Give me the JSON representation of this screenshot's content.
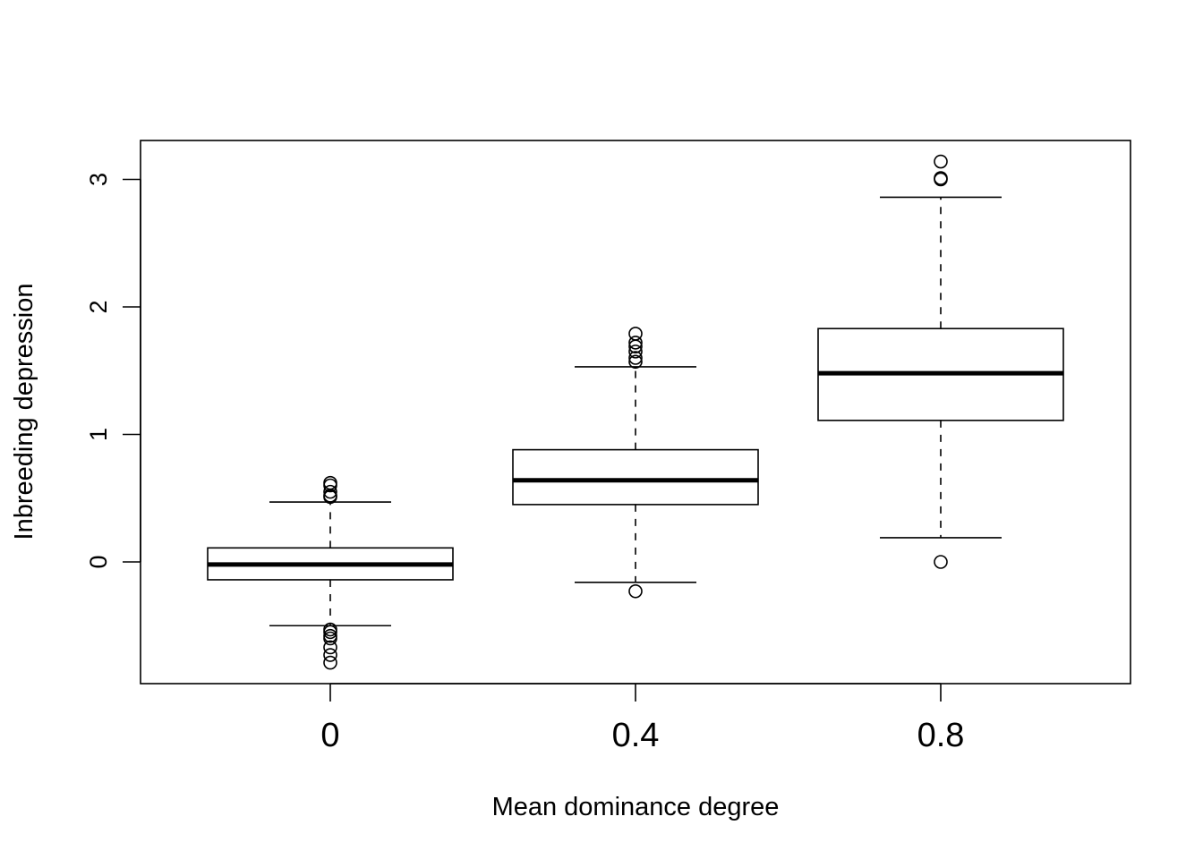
{
  "chart_data": {
    "type": "boxplot",
    "title": "",
    "xlabel": "Mean dominance degree",
    "ylabel": "Inbreeding depression",
    "categories": [
      "0",
      "0.4",
      "0.8"
    ],
    "ylim": [
      -0.95,
      3.3
    ],
    "yticks": [
      0,
      1,
      2,
      3
    ],
    "boxes": [
      {
        "category": "0",
        "whisker_low": -0.5,
        "q1": -0.14,
        "median": -0.02,
        "q3": 0.11,
        "whisker_high": 0.47,
        "outliers": [
          0.62,
          0.6,
          0.55,
          0.52,
          0.51,
          -0.53,
          -0.55,
          -0.58,
          -0.6,
          -0.67,
          -0.73,
          -0.79
        ]
      },
      {
        "category": "0.4",
        "whisker_low": -0.16,
        "q1": 0.45,
        "median": 0.64,
        "q3": 0.88,
        "whisker_high": 1.53,
        "outliers": [
          1.79,
          1.72,
          1.69,
          1.65,
          1.6,
          1.57,
          -0.23
        ]
      },
      {
        "category": "0.8",
        "whisker_low": 0.19,
        "q1": 1.11,
        "median": 1.48,
        "q3": 1.83,
        "whisker_high": 2.86,
        "outliers": [
          3.14,
          3.01,
          3.0,
          0.0
        ]
      }
    ],
    "grid": false,
    "legend": "none"
  }
}
